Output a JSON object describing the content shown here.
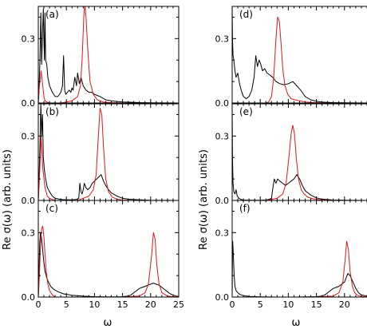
{
  "chart_data": {
    "type": "line",
    "xlabel": "ω",
    "ylabel": "Re σ(ω) (arb. units)",
    "xlim": [
      0,
      25
    ],
    "ylim": [
      0,
      0.45
    ],
    "x_ticks": [
      "0",
      "5",
      "10",
      "15",
      "20",
      "25"
    ],
    "y_ticks": [
      "0.0",
      "0.3"
    ],
    "colors": {
      "black_curve": "#000000",
      "red_curve": "#e0141e"
    },
    "panels": [
      {
        "label": "(a)",
        "column": 0,
        "row": 0,
        "show_x_ticks": false,
        "series": [
          {
            "color": "#000000",
            "x": [
              0,
              0.1,
              0.3,
              0.45,
              0.6,
              0.75,
              0.9,
              1.0,
              1.1,
              1.2,
              1.3,
              1.5,
              1.7,
              2.0,
              2.5,
              3.0,
              3.5,
              4.0,
              4.3,
              4.5,
              4.7,
              4.9,
              5.2,
              5.5,
              5.8,
              6.0,
              6.2,
              6.5,
              6.8,
              7.0,
              7.3,
              7.6,
              8.0,
              8.5,
              9.0,
              9.5,
              10,
              11,
              12,
              13,
              14,
              15,
              16,
              18,
              20,
              25
            ],
            "y": [
              0.0,
              0.05,
              0.2,
              0.42,
              0.18,
              0.33,
              0.44,
              0.3,
              0.2,
              0.42,
              0.2,
              0.18,
              0.12,
              0.08,
              0.05,
              0.03,
              0.03,
              0.05,
              0.08,
              0.22,
              0.06,
              0.04,
              0.05,
              0.06,
              0.05,
              0.07,
              0.06,
              0.12,
              0.08,
              0.14,
              0.09,
              0.12,
              0.08,
              0.06,
              0.05,
              0.05,
              0.04,
              0.03,
              0.015,
              0.01,
              0.007,
              0.005,
              0.004,
              0.002,
              0.001,
              0.0
            ]
          },
          {
            "color": "#e0141e",
            "x": [
              0,
              0.2,
              0.5,
              0.8,
              1.0,
              1.2,
              1.5,
              2,
              3,
              4,
              5,
              6,
              7,
              7.5,
              7.8,
              8.1,
              8.3,
              8.5,
              8.8,
              9.2,
              9.8,
              10.5,
              11.5,
              13,
              15,
              18,
              25
            ],
            "y": [
              0.0,
              0.08,
              0.15,
              0.08,
              0.03,
              0.01,
              0.005,
              0.0,
              0.0,
              0.0,
              0.005,
              0.01,
              0.03,
              0.08,
              0.2,
              0.4,
              0.46,
              0.4,
              0.25,
              0.1,
              0.04,
              0.015,
              0.005,
              0.002,
              0.0,
              0.0,
              0.0
            ]
          }
        ]
      },
      {
        "label": "(b)",
        "column": 0,
        "row": 1,
        "show_x_ticks": false,
        "series": [
          {
            "color": "#000000",
            "x": [
              0,
              0.1,
              0.3,
              0.45,
              0.6,
              0.75,
              0.9,
              1.1,
              1.3,
              1.6,
              2.0,
              2.5,
              3.0,
              4.0,
              5.0,
              6.0,
              6.8,
              7.2,
              7.4,
              7.6,
              7.8,
              8.0,
              8.2,
              8.5,
              8.8,
              9.2,
              9.6,
              10.0,
              10.4,
              10.8,
              11.2,
              11.6,
              12.0,
              12.5,
              13,
              14,
              15,
              16,
              18,
              20,
              25
            ],
            "y": [
              0.0,
              0.08,
              0.25,
              0.45,
              0.3,
              0.4,
              0.2,
              0.14,
              0.1,
              0.06,
              0.04,
              0.02,
              0.01,
              0.005,
              0.003,
              0.003,
              0.005,
              0.01,
              0.08,
              0.04,
              0.03,
              0.05,
              0.08,
              0.06,
              0.05,
              0.06,
              0.08,
              0.09,
              0.1,
              0.11,
              0.12,
              0.09,
              0.07,
              0.05,
              0.035,
              0.02,
              0.01,
              0.006,
              0.003,
              0.001,
              0.0
            ]
          },
          {
            "color": "#e0141e",
            "x": [
              0,
              0.2,
              0.5,
              0.8,
              1.2,
              1.6,
              2,
              3,
              5,
              7,
              8,
              9,
              9.8,
              10.3,
              10.7,
              11.0,
              11.3,
              11.6,
              12.0,
              12.5,
              13.2,
              14,
              15,
              17,
              20,
              25
            ],
            "y": [
              0.0,
              0.1,
              0.3,
              0.15,
              0.06,
              0.02,
              0.01,
              0.0,
              0.0,
              0.0,
              0.01,
              0.02,
              0.05,
              0.12,
              0.3,
              0.43,
              0.4,
              0.25,
              0.1,
              0.04,
              0.015,
              0.006,
              0.002,
              0.0,
              0.0,
              0.0
            ]
          }
        ]
      },
      {
        "label": "(c)",
        "column": 0,
        "row": 2,
        "show_x_ticks": true,
        "series": [
          {
            "color": "#000000",
            "x": [
              0,
              0.1,
              0.25,
              0.4,
              0.55,
              0.7,
              0.85,
              1.0,
              1.2,
              1.5,
              1.8,
              2.2,
              2.8,
              3.5,
              4.5,
              6,
              8,
              10,
              12,
              14,
              15,
              16,
              16.5,
              17,
              17.5,
              18,
              18.5,
              19,
              19.5,
              20,
              20.5,
              21,
              21.5,
              22,
              22.5,
              23,
              23.5,
              24,
              24.5,
              25
            ],
            "y": [
              0.0,
              0.1,
              0.25,
              0.3,
              0.28,
              0.24,
              0.2,
              0.16,
              0.12,
              0.09,
              0.07,
              0.05,
              0.035,
              0.025,
              0.015,
              0.008,
              0.004,
              0.002,
              0.001,
              0.001,
              0.002,
              0.005,
              0.01,
              0.02,
              0.03,
              0.04,
              0.045,
              0.05,
              0.055,
              0.06,
              0.065,
              0.06,
              0.055,
              0.045,
              0.035,
              0.025,
              0.015,
              0.01,
              0.005,
              0.003
            ]
          },
          {
            "color": "#e0141e",
            "x": [
              0,
              0.2,
              0.4,
              0.6,
              0.8,
              1.0,
              1.2,
              1.4,
              1.7,
              2,
              2.5,
              3,
              5,
              10,
              15,
              18,
              19,
              19.6,
              20.2,
              20.5,
              20.8,
              21.1,
              21.5,
              22,
              23,
              25
            ],
            "y": [
              0.0,
              0.1,
              0.25,
              0.32,
              0.33,
              0.28,
              0.2,
              0.12,
              0.06,
              0.03,
              0.01,
              0.0,
              0.0,
              0.0,
              0.0,
              0.005,
              0.02,
              0.06,
              0.2,
              0.3,
              0.27,
              0.15,
              0.06,
              0.02,
              0.005,
              0.0
            ]
          }
        ]
      },
      {
        "label": "(d)",
        "column": 1,
        "row": 0,
        "show_x_ticks": false,
        "series": [
          {
            "color": "#000000",
            "x": [
              0,
              0.05,
              0.15,
              0.3,
              0.5,
              0.7,
              1.0,
              1.3,
              1.6,
              2.0,
              2.5,
              3.0,
              3.5,
              3.9,
              4.2,
              4.5,
              4.8,
              5.1,
              5.4,
              5.8,
              6.2,
              6.7,
              7.2,
              7.8,
              8.5,
              9.2,
              10,
              10.8,
              11.5,
              12.2,
              13,
              14,
              15,
              16,
              18,
              20,
              25
            ],
            "y": [
              0.45,
              0.3,
              0.22,
              0.2,
              0.15,
              0.12,
              0.14,
              0.09,
              0.06,
              0.03,
              0.02,
              0.03,
              0.06,
              0.12,
              0.22,
              0.17,
              0.2,
              0.18,
              0.15,
              0.16,
              0.14,
              0.13,
              0.12,
              0.1,
              0.09,
              0.085,
              0.09,
              0.1,
              0.08,
              0.06,
              0.03,
              0.015,
              0.008,
              0.004,
              0.002,
              0.001,
              0.0
            ]
          },
          {
            "color": "#e0141e",
            "x": [
              0,
              3,
              5,
              6,
              6.5,
              7,
              7.4,
              7.8,
              8.1,
              8.4,
              8.7,
              9.0,
              9.4,
              9.9,
              10.5,
              11.2,
              12,
              13,
              14,
              16,
              18,
              25
            ],
            "y": [
              0.0,
              0.0,
              0.0,
              0.0,
              0.005,
              0.03,
              0.12,
              0.3,
              0.4,
              0.38,
              0.28,
              0.16,
              0.08,
              0.04,
              0.02,
              0.015,
              0.01,
              0.005,
              0.003,
              0.001,
              0.0,
              0.0
            ]
          }
        ]
      },
      {
        "label": "(e)",
        "column": 1,
        "row": 1,
        "show_x_ticks": false,
        "series": [
          {
            "color": "#000000",
            "x": [
              0,
              0.05,
              0.15,
              0.3,
              0.5,
              0.7,
              0.9,
              1.2,
              1.5,
              2,
              3,
              4,
              5,
              6,
              6.5,
              7.0,
              7.2,
              7.5,
              7.8,
              8.1,
              8.5,
              9.0,
              9.5,
              10,
              10.5,
              11,
              11.5,
              12,
              12.5,
              13,
              14,
              15,
              16,
              18,
              20,
              25
            ],
            "y": [
              0.45,
              0.2,
              0.08,
              0.04,
              0.03,
              0.05,
              0.02,
              0.01,
              0.005,
              0.002,
              0.001,
              0.001,
              0.001,
              0.002,
              0.005,
              0.01,
              0.05,
              0.1,
              0.08,
              0.1,
              0.09,
              0.08,
              0.07,
              0.08,
              0.09,
              0.1,
              0.12,
              0.1,
              0.07,
              0.045,
              0.025,
              0.012,
              0.006,
              0.002,
              0.001,
              0.0
            ]
          },
          {
            "color": "#e0141e",
            "x": [
              0,
              4,
              6,
              7,
              8,
              9,
              9.6,
              10.1,
              10.5,
              10.8,
              11.1,
              11.4,
              11.8,
              12.3,
              12.8,
              13.5,
              14.5,
              16,
              18,
              25
            ],
            "y": [
              0.0,
              0.0,
              0.0,
              0.005,
              0.01,
              0.03,
              0.08,
              0.2,
              0.31,
              0.35,
              0.31,
              0.2,
              0.1,
              0.05,
              0.03,
              0.015,
              0.007,
              0.002,
              0.0,
              0.0
            ]
          }
        ]
      },
      {
        "label": "(f)",
        "column": 1,
        "row": 2,
        "show_x_ticks": true,
        "series": [
          {
            "color": "#000000",
            "x": [
              0,
              0.05,
              0.1,
              0.2,
              0.35,
              0.5,
              0.7,
              1.0,
              1.4,
              2,
              3,
              5,
              8,
              11,
              13,
              15,
              16,
              16.5,
              17,
              17.5,
              18,
              18.5,
              19,
              19.5,
              20,
              20.3,
              20.6,
              21,
              21.5,
              22,
              22.5,
              23,
              24,
              25
            ],
            "y": [
              0.0,
              0.2,
              0.26,
              0.2,
              0.1,
              0.05,
              0.03,
              0.02,
              0.012,
              0.007,
              0.003,
              0.001,
              0.0,
              0.0,
              0.001,
              0.002,
              0.005,
              0.01,
              0.02,
              0.03,
              0.04,
              0.045,
              0.05,
              0.06,
              0.07,
              0.09,
              0.11,
              0.1,
              0.07,
              0.04,
              0.02,
              0.01,
              0.004,
              0.002
            ]
          },
          {
            "color": "#e0141e",
            "x": [
              0,
              5,
              10,
              15,
              18,
              19,
              19.7,
              20.1,
              20.4,
              20.7,
              21.0,
              21.4,
              21.8,
              22.3,
              23,
              24,
              25
            ],
            "y": [
              0.0,
              0.0,
              0.0,
              0.0,
              0.005,
              0.02,
              0.07,
              0.17,
              0.26,
              0.22,
              0.12,
              0.05,
              0.02,
              0.008,
              0.003,
              0.001,
              0.0
            ]
          }
        ]
      }
    ]
  }
}
